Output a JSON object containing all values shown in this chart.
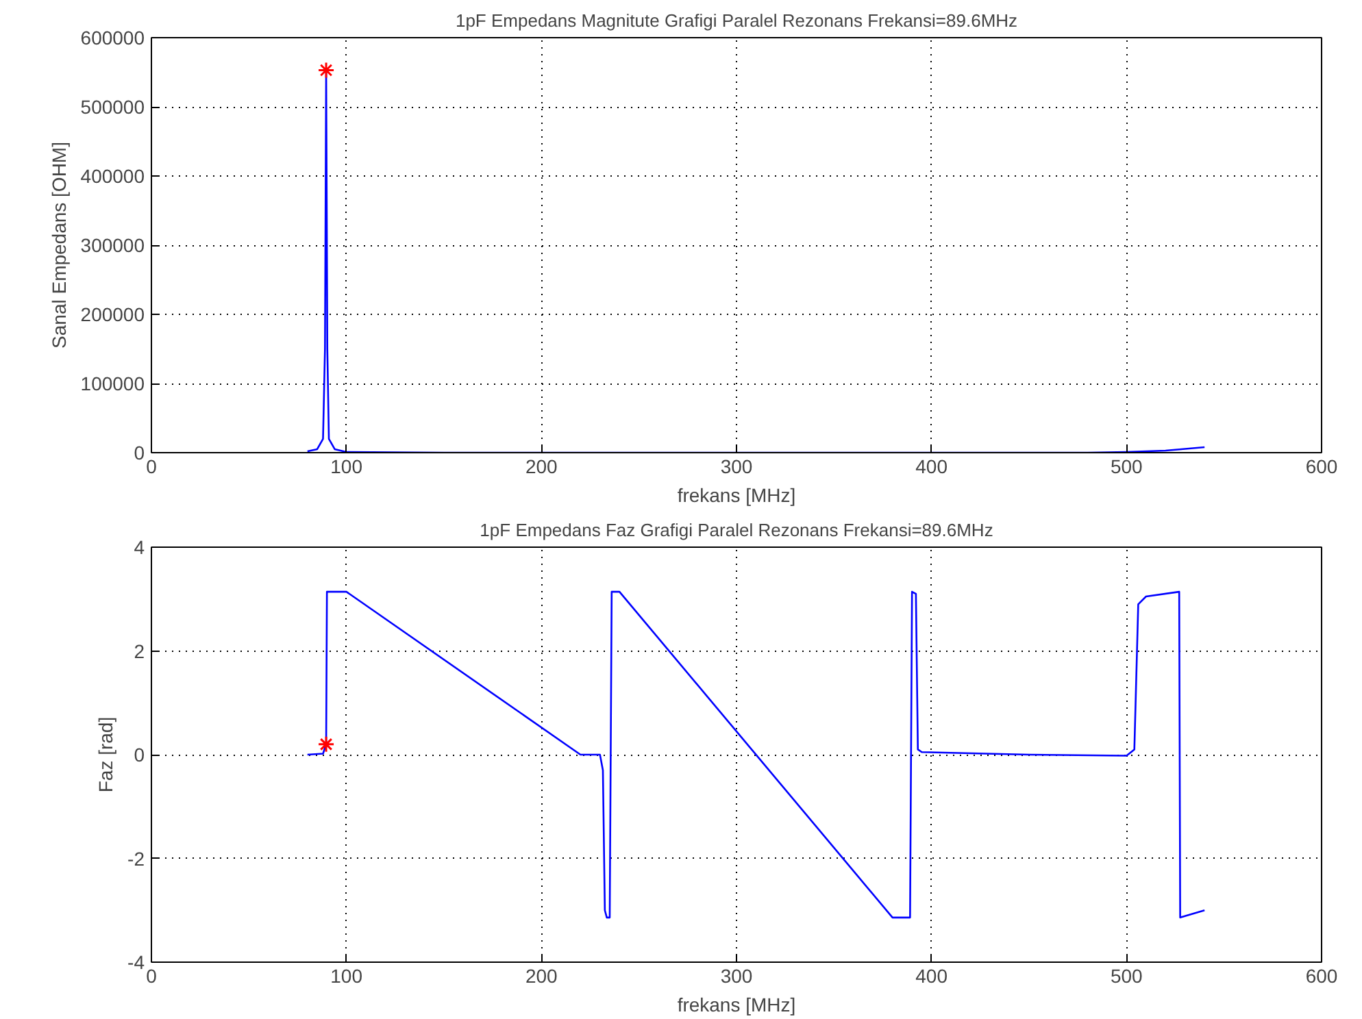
{
  "chart_data": [
    {
      "type": "line",
      "title": "1pF Empedans Magnitute Grafigi Paralel Rezonans Frekansi=89.6MHz",
      "xlabel": "frekans [MHz]",
      "ylabel": "Sanal Empedans [OHM]",
      "xlim": [
        0,
        600
      ],
      "xticks": [
        0,
        100,
        200,
        300,
        400,
        500,
        600
      ],
      "ylim": [
        0,
        600000
      ],
      "yticks": [
        0,
        100000,
        200000,
        300000,
        400000,
        500000,
        600000
      ],
      "grid": true,
      "series": [
        {
          "color": "#0000ff",
          "marker": "none",
          "x": [
            80,
            85,
            88,
            89,
            89.6,
            90.2,
            91,
            94,
            100,
            150,
            200,
            300,
            400,
            480,
            500,
            520,
            540
          ],
          "values": [
            2000,
            5000,
            20000,
            150000,
            553000,
            150000,
            20000,
            5000,
            1000,
            0,
            0,
            0,
            0,
            0,
            1000,
            3000,
            8000
          ]
        },
        {
          "type": "scatter",
          "color": "#ff0000",
          "marker": "cross",
          "x": [
            89.6
          ],
          "values": [
            553000
          ]
        }
      ]
    },
    {
      "type": "line",
      "title": "1pF Empedans Faz Grafigi Paralel Rezonans Frekansi=89.6MHz",
      "xlabel": "frekans [MHz]",
      "ylabel": "Faz [rad]",
      "xlim": [
        0,
        600
      ],
      "xticks": [
        0,
        100,
        200,
        300,
        400,
        500,
        600
      ],
      "ylim": [
        -4,
        4
      ],
      "yticks": [
        -4,
        -2,
        0,
        2,
        4
      ],
      "grid": true,
      "series": [
        {
          "color": "#0000ff",
          "marker": "none",
          "x": [
            80,
            88,
            89.6,
            90,
            100,
            220,
            230,
            231.5,
            232.5,
            233.5,
            235,
            236,
            240,
            380,
            389,
            390,
            392,
            393,
            395,
            450,
            500,
            504,
            506,
            510,
            527,
            527.5,
            540
          ],
          "values": [
            0,
            0.02,
            0.2,
            3.14,
            3.14,
            0,
            0,
            -0.3,
            -3.0,
            -3.14,
            -3.14,
            3.14,
            3.14,
            -3.14,
            -3.14,
            3.14,
            3.1,
            0.1,
            0.05,
            0.0,
            -0.02,
            0.1,
            2.9,
            3.05,
            3.14,
            -3.14,
            -3.0
          ]
        },
        {
          "type": "scatter",
          "color": "#ff0000",
          "marker": "cross",
          "x": [
            89.6
          ],
          "values": [
            0.2
          ]
        }
      ]
    }
  ]
}
